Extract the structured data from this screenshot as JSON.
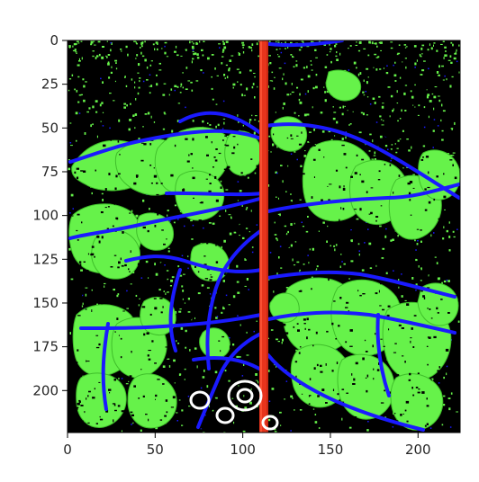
{
  "image": {
    "description_type": "segmentation mask of a plant (leaves green, stems blue, stake red, flowers white) on black",
    "colors": {
      "background": "#000000",
      "leaf": "#66f24a",
      "stem": "#1a1aff",
      "stake": "#e8341c",
      "flower": "#ffffff",
      "axes_frame": "#000000"
    }
  },
  "axes": {
    "x_ticks": [
      {
        "value": 0,
        "label": "0"
      },
      {
        "value": 50,
        "label": "50"
      },
      {
        "value": 100,
        "label": "100"
      },
      {
        "value": 150,
        "label": "150"
      },
      {
        "value": 200,
        "label": "200"
      }
    ],
    "y_ticks": [
      {
        "value": 0,
        "label": "0"
      },
      {
        "value": 25,
        "label": "25"
      },
      {
        "value": 50,
        "label": "50"
      },
      {
        "value": 75,
        "label": "75"
      },
      {
        "value": 100,
        "label": "100"
      },
      {
        "value": 125,
        "label": "125"
      },
      {
        "value": 150,
        "label": "150"
      },
      {
        "value": 175,
        "label": "175"
      },
      {
        "value": 200,
        "label": "200"
      }
    ],
    "x_range": [
      0,
      224
    ],
    "y_range": [
      0,
      224
    ],
    "y_inverted": true
  }
}
